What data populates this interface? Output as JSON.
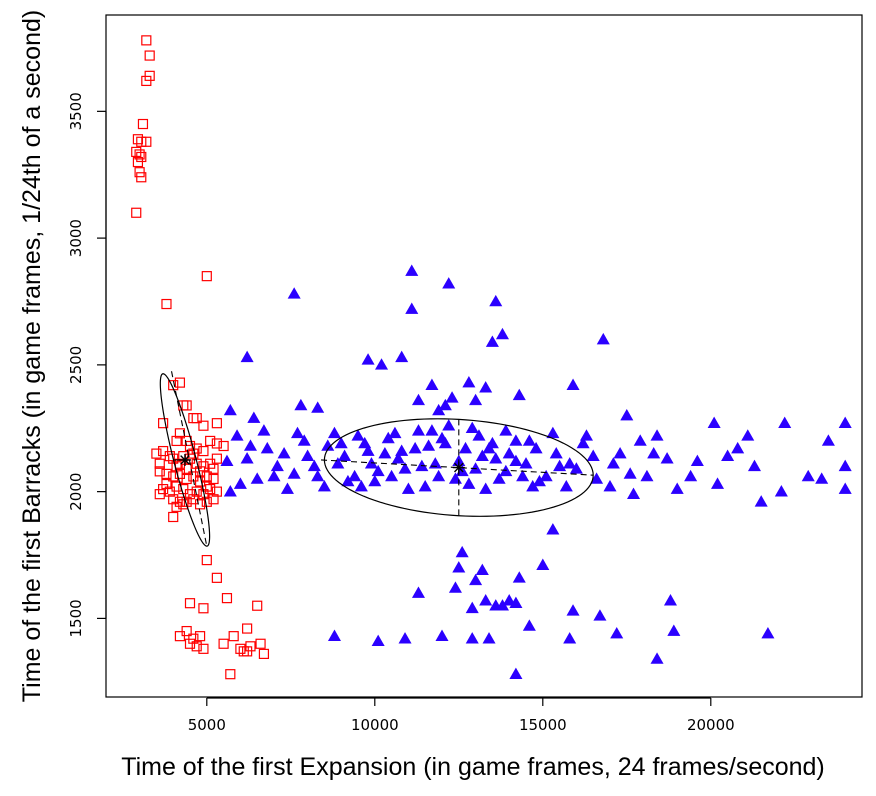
{
  "chart_data": {
    "type": "scatter",
    "title": "",
    "xlabel": "Time of the first Expansion (in game frames, 24 frames/second)",
    "ylabel": "Time of the first Barracks (in game frames, 1/24th of a second)",
    "xlim": [
      2000,
      24500
    ],
    "ylim": [
      1190,
      3880
    ],
    "xticks": [
      5000,
      10000,
      15000,
      20000
    ],
    "yticks": [
      1500,
      2000,
      2500,
      3000,
      3500
    ],
    "grid": false,
    "legend": "none",
    "series": [
      {
        "marker": "open-square",
        "color": "#ff0000",
        "points": [
          [
            3200,
            3780
          ],
          [
            3300,
            3720
          ],
          [
            3200,
            3620
          ],
          [
            3300,
            3640
          ],
          [
            3100,
            3450
          ],
          [
            2950,
            3390
          ],
          [
            3050,
            3380
          ],
          [
            3200,
            3380
          ],
          [
            2900,
            3340
          ],
          [
            3000,
            3330
          ],
          [
            3050,
            3320
          ],
          [
            2950,
            3300
          ],
          [
            3000,
            3260
          ],
          [
            3050,
            3240
          ],
          [
            2900,
            3100
          ],
          [
            3800,
            2740
          ],
          [
            5000,
            2850
          ],
          [
            4000,
            2420
          ],
          [
            4200,
            2430
          ],
          [
            4300,
            2340
          ],
          [
            4400,
            2340
          ],
          [
            4600,
            2290
          ],
          [
            4700,
            2290
          ],
          [
            3700,
            2270
          ],
          [
            4900,
            2260
          ],
          [
            5300,
            2270
          ],
          [
            4100,
            2200
          ],
          [
            4200,
            2230
          ],
          [
            4400,
            2200
          ],
          [
            4500,
            2180
          ],
          [
            4700,
            2170
          ],
          [
            4900,
            2160
          ],
          [
            5100,
            2200
          ],
          [
            5300,
            2190
          ],
          [
            3500,
            2150
          ],
          [
            3700,
            2160
          ],
          [
            3900,
            2140
          ],
          [
            4100,
            2100
          ],
          [
            4300,
            2140
          ],
          [
            4500,
            2130
          ],
          [
            4700,
            2110
          ],
          [
            4900,
            2100
          ],
          [
            5100,
            2110
          ],
          [
            5300,
            2130
          ],
          [
            3600,
            2080
          ],
          [
            3800,
            2070
          ],
          [
            4000,
            2060
          ],
          [
            4200,
            2070
          ],
          [
            4400,
            2050
          ],
          [
            4600,
            2060
          ],
          [
            4800,
            2040
          ],
          [
            5000,
            2060
          ],
          [
            5200,
            2050
          ],
          [
            3700,
            2010
          ],
          [
            3900,
            2000
          ],
          [
            4100,
            2020
          ],
          [
            4300,
            2010
          ],
          [
            4500,
            1990
          ],
          [
            4700,
            2000
          ],
          [
            4900,
            1990
          ],
          [
            5100,
            2010
          ],
          [
            5300,
            2000
          ],
          [
            4000,
            1970
          ],
          [
            4200,
            1960
          ],
          [
            4400,
            1960
          ],
          [
            4600,
            1970
          ],
          [
            4800,
            1950
          ],
          [
            5000,
            1960
          ],
          [
            5200,
            1970
          ],
          [
            3600,
            1990
          ],
          [
            3800,
            2030
          ],
          [
            4000,
            2130
          ],
          [
            4200,
            2110
          ],
          [
            4400,
            2090
          ],
          [
            4600,
            2150
          ],
          [
            4800,
            2080
          ],
          [
            5000,
            2020
          ],
          [
            5200,
            2090
          ],
          [
            4300,
            1950
          ],
          [
            4100,
            1940
          ],
          [
            3600,
            2110
          ],
          [
            4000,
            1900
          ],
          [
            5500,
            2180
          ],
          [
            5000,
            1730
          ],
          [
            5300,
            1660
          ],
          [
            4500,
            1560
          ],
          [
            4900,
            1540
          ],
          [
            5600,
            1580
          ],
          [
            6500,
            1550
          ],
          [
            5500,
            1400
          ],
          [
            4200,
            1430
          ],
          [
            4400,
            1450
          ],
          [
            4600,
            1420
          ],
          [
            4800,
            1430
          ],
          [
            4500,
            1400
          ],
          [
            4700,
            1390
          ],
          [
            4900,
            1380
          ],
          [
            5800,
            1430
          ],
          [
            6200,
            1460
          ],
          [
            6000,
            1380
          ],
          [
            6200,
            1370
          ],
          [
            6600,
            1400
          ],
          [
            6700,
            1360
          ],
          [
            6300,
            1390
          ],
          [
            6100,
            1370
          ],
          [
            5700,
            1280
          ]
        ]
      },
      {
        "marker": "filled-triangle",
        "color": "#2b00ff",
        "points": [
          [
            11100,
            2870
          ],
          [
            12200,
            2820
          ],
          [
            7600,
            2780
          ],
          [
            11100,
            2720
          ],
          [
            13600,
            2750
          ],
          [
            13500,
            2590
          ],
          [
            13800,
            2620
          ],
          [
            10800,
            2530
          ],
          [
            9800,
            2520
          ],
          [
            6200,
            2530
          ],
          [
            16800,
            2600
          ],
          [
            10200,
            2500
          ],
          [
            11700,
            2420
          ],
          [
            12800,
            2430
          ],
          [
            13300,
            2410
          ],
          [
            15900,
            2420
          ],
          [
            13000,
            2360
          ],
          [
            12300,
            2370
          ],
          [
            14300,
            2380
          ],
          [
            11300,
            2360
          ],
          [
            11900,
            2320
          ],
          [
            12100,
            2340
          ],
          [
            6400,
            2290
          ],
          [
            7800,
            2340
          ],
          [
            8300,
            2330
          ],
          [
            5700,
            2320
          ],
          [
            17500,
            2300
          ],
          [
            20100,
            2270
          ],
          [
            22200,
            2270
          ],
          [
            24000,
            2270
          ],
          [
            24000,
            2100
          ],
          [
            24000,
            2010
          ],
          [
            23500,
            2200
          ],
          [
            23300,
            2050
          ],
          [
            22900,
            2060
          ],
          [
            22100,
            2000
          ],
          [
            21100,
            2220
          ],
          [
            21300,
            2100
          ],
          [
            21500,
            1960
          ],
          [
            20800,
            2170
          ],
          [
            20500,
            2140
          ],
          [
            20200,
            2030
          ],
          [
            19600,
            2120
          ],
          [
            18700,
            2130
          ],
          [
            18400,
            2220
          ],
          [
            18100,
            2060
          ],
          [
            17900,
            2200
          ],
          [
            17300,
            2150
          ],
          [
            17700,
            1990
          ],
          [
            17000,
            2020
          ],
          [
            16500,
            2140
          ],
          [
            16300,
            2220
          ],
          [
            15800,
            2110
          ],
          [
            15300,
            2230
          ],
          [
            14900,
            2040
          ],
          [
            14600,
            2200
          ],
          [
            14200,
            2120
          ],
          [
            13900,
            2240
          ],
          [
            13700,
            2050
          ],
          [
            13400,
            2170
          ],
          [
            13100,
            2220
          ],
          [
            12800,
            2030
          ],
          [
            12500,
            2120
          ],
          [
            12200,
            2260
          ],
          [
            11900,
            2060
          ],
          [
            11600,
            2180
          ],
          [
            11300,
            2240
          ],
          [
            11000,
            2010
          ],
          [
            10700,
            2130
          ],
          [
            10400,
            2210
          ],
          [
            10100,
            2080
          ],
          [
            9800,
            2160
          ],
          [
            9500,
            2220
          ],
          [
            9200,
            2040
          ],
          [
            8900,
            2110
          ],
          [
            8600,
            2180
          ],
          [
            8300,
            2060
          ],
          [
            8000,
            2140
          ],
          [
            7700,
            2230
          ],
          [
            7400,
            2010
          ],
          [
            7100,
            2100
          ],
          [
            6800,
            2170
          ],
          [
            6500,
            2050
          ],
          [
            6200,
            2130
          ],
          [
            5900,
            2220
          ],
          [
            5700,
            2000
          ],
          [
            5600,
            2120
          ],
          [
            6000,
            2030
          ],
          [
            6300,
            2180
          ],
          [
            6700,
            2240
          ],
          [
            7000,
            2060
          ],
          [
            7300,
            2150
          ],
          [
            7600,
            2070
          ],
          [
            7900,
            2200
          ],
          [
            8200,
            2100
          ],
          [
            8500,
            2020
          ],
          [
            8800,
            2230
          ],
          [
            9100,
            2140
          ],
          [
            9400,
            2060
          ],
          [
            9700,
            2190
          ],
          [
            10000,
            2040
          ],
          [
            10300,
            2150
          ],
          [
            10600,
            2230
          ],
          [
            10900,
            2090
          ],
          [
            11200,
            2170
          ],
          [
            11500,
            2020
          ],
          [
            11800,
            2110
          ],
          [
            12100,
            2190
          ],
          [
            12400,
            2050
          ],
          [
            12700,
            2170
          ],
          [
            13000,
            2090
          ],
          [
            13300,
            2010
          ],
          [
            13600,
            2130
          ],
          [
            13900,
            2080
          ],
          [
            14200,
            2200
          ],
          [
            14500,
            2110
          ],
          [
            14800,
            2170
          ],
          [
            15100,
            2060
          ],
          [
            15400,
            2150
          ],
          [
            15700,
            2020
          ],
          [
            16000,
            2090
          ],
          [
            16200,
            2190
          ],
          [
            16600,
            2050
          ],
          [
            17100,
            2110
          ],
          [
            17600,
            2070
          ],
          [
            18300,
            2150
          ],
          [
            19000,
            2010
          ],
          [
            19400,
            2060
          ],
          [
            12000,
            2210
          ],
          [
            12600,
            2080
          ],
          [
            13200,
            2140
          ],
          [
            11400,
            2100
          ],
          [
            10500,
            2060
          ],
          [
            9900,
            2110
          ],
          [
            14000,
            2150
          ],
          [
            14700,
            2020
          ],
          [
            15500,
            2100
          ],
          [
            12900,
            2250
          ],
          [
            11700,
            2240
          ],
          [
            10800,
            2160
          ],
          [
            13500,
            2190
          ],
          [
            14400,
            2060
          ],
          [
            9600,
            2020
          ],
          [
            9000,
            2190
          ],
          [
            15300,
            1850
          ],
          [
            12600,
            1760
          ],
          [
            12500,
            1700
          ],
          [
            13200,
            1690
          ],
          [
            14300,
            1660
          ],
          [
            15000,
            1710
          ],
          [
            13000,
            1650
          ],
          [
            12400,
            1620
          ],
          [
            11300,
            1600
          ],
          [
            13300,
            1570
          ],
          [
            12900,
            1540
          ],
          [
            13600,
            1550
          ],
          [
            13800,
            1550
          ],
          [
            14200,
            1560
          ],
          [
            15900,
            1530
          ],
          [
            14600,
            1470
          ],
          [
            16700,
            1510
          ],
          [
            12000,
            1430
          ],
          [
            12900,
            1420
          ],
          [
            13400,
            1420
          ],
          [
            10900,
            1420
          ],
          [
            10100,
            1410
          ],
          [
            8800,
            1430
          ],
          [
            15800,
            1420
          ],
          [
            17200,
            1440
          ],
          [
            18800,
            1570
          ],
          [
            18900,
            1450
          ],
          [
            21700,
            1440
          ],
          [
            18400,
            1340
          ],
          [
            14200,
            1280
          ],
          [
            14000,
            1570
          ]
        ]
      }
    ],
    "ellipses": [
      {
        "center": [
          4350,
          2125
        ],
        "axis_a": [
          5000,
          1785
        ],
        "axis_b": [
          4010,
          2125
        ],
        "major_endpoints": [
          [
            3950,
            2475
          ],
          [
            5000,
            1785
          ]
        ],
        "minor_endpoints": [
          [
            4010,
            2125
          ],
          [
            4660,
            2125
          ]
        ]
      },
      {
        "center": [
          12500,
          2095
        ],
        "axis_a": [
          16500,
          2065
        ],
        "axis_b": [
          12500,
          1905
        ],
        "major_endpoints": [
          [
            8400,
            2125
          ],
          [
            16500,
            2065
          ]
        ],
        "minor_endpoints": [
          [
            12500,
            2285
          ],
          [
            12500,
            1905
          ]
        ]
      }
    ],
    "centers_marker": "asterisk",
    "center_color": "#000000"
  }
}
